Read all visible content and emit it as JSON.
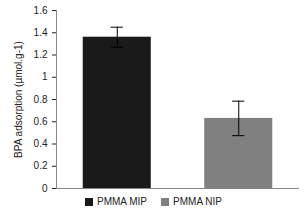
{
  "chart_data": {
    "type": "bar",
    "categories": [
      "PMMA MIP",
      "PMMA NIP"
    ],
    "values": [
      1.36,
      0.63
    ],
    "errors": [
      0.09,
      0.155
    ],
    "colors": [
      "#1a1a1a",
      "#808080"
    ],
    "y_label": "BPA adsorption (µmol.g-1)",
    "ylim": [
      0,
      1.6
    ],
    "yticks": [
      0,
      0.2,
      0.4,
      0.6,
      0.8,
      1,
      1.2,
      1.4,
      1.6
    ],
    "grid": false,
    "legend": "bottom",
    "tick_labels": "y"
  }
}
